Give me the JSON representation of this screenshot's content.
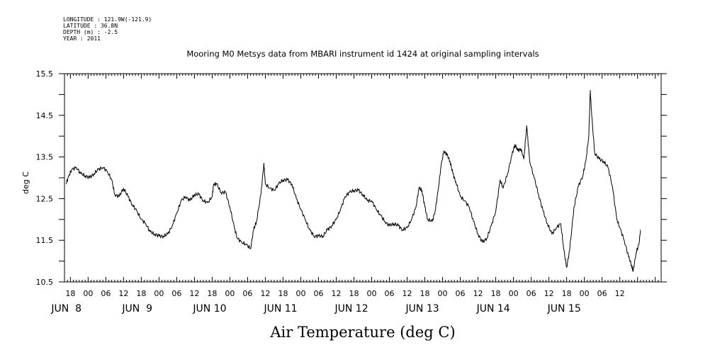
{
  "header": {
    "longitude": "LONGITUDE : 121.9W(-121.9)",
    "latitude": "LATITUDE : 36.8N",
    "depth": "DEPTH (m) : -2.5",
    "year": "YEAR : 2011"
  },
  "chart_data": {
    "type": "line",
    "title": "Mooring M0 Metsys data from MBARI instrument id 1424 at original sampling intervals",
    "xlabel": "Air Temperature (deg C)",
    "ylabel": "deg C",
    "ylim": [
      10.5,
      15.5
    ],
    "yticks": [
      "10.5",
      "11.5",
      "12.5",
      "13.5",
      "14.5",
      "15.5"
    ],
    "xlim_hours": [
      -8,
      194
    ],
    "x_units": "hours since 2011-06-08 00:00",
    "xticks_hours": [
      "18",
      "00",
      "06",
      "12",
      "18",
      "00",
      "06",
      "12",
      "18",
      "00",
      "06",
      "12",
      "18",
      "00",
      "06",
      "12",
      "18",
      "00",
      "06",
      "12",
      "18",
      "00",
      "06",
      "12",
      "18",
      "00",
      "06",
      "12",
      "18",
      "00",
      "06",
      "12"
    ],
    "day_labels": [
      "JUN  8",
      "JUN  9",
      "JUN 10",
      "JUN 11",
      "JUN 12",
      "JUN 13",
      "JUN 14",
      "JUN 15"
    ],
    "grid": false,
    "series": [
      {
        "name": "",
        "color": "#000000",
        "points": [
          [
            -7.5,
            12.85
          ],
          [
            -6.5,
            13.05
          ],
          [
            -5.5,
            13.2
          ],
          [
            -4,
            13.25
          ],
          [
            -2.5,
            13.1
          ],
          [
            -1,
            13.05
          ],
          [
            0.5,
            13.0
          ],
          [
            2,
            13.1
          ],
          [
            3.5,
            13.2
          ],
          [
            5,
            13.25
          ],
          [
            6.5,
            13.15
          ],
          [
            8,
            12.95
          ],
          [
            9,
            12.6
          ],
          [
            10.5,
            12.55
          ],
          [
            12,
            12.75
          ],
          [
            13.5,
            12.55
          ],
          [
            15,
            12.35
          ],
          [
            16.5,
            12.2
          ],
          [
            18,
            12.0
          ],
          [
            19.5,
            11.9
          ],
          [
            21,
            11.7
          ],
          [
            22.5,
            11.65
          ],
          [
            24,
            11.6
          ],
          [
            25.5,
            11.6
          ],
          [
            27,
            11.65
          ],
          [
            28.5,
            11.85
          ],
          [
            30,
            12.15
          ],
          [
            31.5,
            12.45
          ],
          [
            33,
            12.55
          ],
          [
            34.5,
            12.45
          ],
          [
            36,
            12.6
          ],
          [
            37.5,
            12.6
          ],
          [
            39,
            12.45
          ],
          [
            40.5,
            12.4
          ],
          [
            42,
            12.55
          ],
          [
            42.5,
            12.85
          ],
          [
            43.5,
            12.85
          ],
          [
            45,
            12.65
          ],
          [
            46.5,
            12.65
          ],
          [
            48,
            12.3
          ],
          [
            49.5,
            11.8
          ],
          [
            50.5,
            11.55
          ],
          [
            52,
            11.45
          ],
          [
            53.5,
            11.4
          ],
          [
            55,
            11.3
          ],
          [
            56,
            11.75
          ],
          [
            57,
            11.95
          ],
          [
            58.5,
            12.6
          ],
          [
            59.5,
            13.35
          ],
          [
            60,
            12.85
          ],
          [
            61.5,
            12.75
          ],
          [
            63,
            12.7
          ],
          [
            64.5,
            12.85
          ],
          [
            66,
            12.95
          ],
          [
            67.5,
            12.95
          ],
          [
            69,
            12.85
          ],
          [
            70.5,
            12.5
          ],
          [
            72,
            12.25
          ],
          [
            73.5,
            12.0
          ],
          [
            75,
            11.75
          ],
          [
            76.5,
            11.6
          ],
          [
            78,
            11.6
          ],
          [
            79.5,
            11.6
          ],
          [
            81,
            11.75
          ],
          [
            82.5,
            11.85
          ],
          [
            84,
            12.0
          ],
          [
            85.5,
            12.25
          ],
          [
            87,
            12.55
          ],
          [
            88.5,
            12.65
          ],
          [
            90,
            12.7
          ],
          [
            91.5,
            12.7
          ],
          [
            93,
            12.6
          ],
          [
            94.5,
            12.45
          ],
          [
            96,
            12.45
          ],
          [
            97.5,
            12.25
          ],
          [
            99,
            12.1
          ],
          [
            100.5,
            11.95
          ],
          [
            102,
            11.85
          ],
          [
            103.5,
            11.9
          ],
          [
            105,
            11.85
          ],
          [
            106.5,
            11.75
          ],
          [
            108,
            11.8
          ],
          [
            109.5,
            12.0
          ],
          [
            111,
            12.3
          ],
          [
            112,
            12.75
          ],
          [
            113,
            12.7
          ],
          [
            114,
            12.3
          ],
          [
            115,
            12.0
          ],
          [
            116.5,
            11.95
          ],
          [
            117.5,
            12.2
          ],
          [
            118.5,
            12.7
          ],
          [
            119.5,
            13.3
          ],
          [
            120.5,
            13.65
          ],
          [
            121.5,
            13.55
          ],
          [
            122.5,
            13.4
          ],
          [
            123.5,
            13.1
          ],
          [
            124.5,
            12.9
          ],
          [
            126,
            12.55
          ],
          [
            127.5,
            12.45
          ],
          [
            129,
            12.3
          ],
          [
            130.5,
            11.95
          ],
          [
            132,
            11.65
          ],
          [
            133.5,
            11.45
          ],
          [
            135,
            11.55
          ],
          [
            136.5,
            11.85
          ],
          [
            138,
            12.2
          ],
          [
            139.5,
            12.95
          ],
          [
            140.5,
            12.75
          ],
          [
            142,
            13.1
          ],
          [
            143.5,
            13.55
          ],
          [
            144.5,
            13.8
          ],
          [
            145.5,
            13.65
          ],
          [
            146.5,
            13.7
          ],
          [
            147.5,
            13.45
          ],
          [
            148.5,
            14.25
          ],
          [
            149.5,
            13.4
          ],
          [
            151,
            13.0
          ],
          [
            152.5,
            12.6
          ],
          [
            154,
            12.2
          ],
          [
            155.5,
            11.9
          ],
          [
            157,
            11.65
          ],
          [
            158.5,
            11.8
          ],
          [
            160,
            11.9
          ],
          [
            161,
            11.3
          ],
          [
            162,
            10.85
          ],
          [
            163,
            11.25
          ],
          [
            164.5,
            12.3
          ],
          [
            166,
            12.8
          ],
          [
            167.5,
            13.05
          ],
          [
            168.5,
            13.4
          ],
          [
            169.5,
            14.0
          ],
          [
            170,
            15.1
          ],
          [
            170.5,
            14.5
          ],
          [
            171.5,
            13.6
          ],
          [
            173,
            13.45
          ],
          [
            174.5,
            13.4
          ],
          [
            176,
            13.25
          ],
          [
            177.5,
            12.8
          ],
          [
            179,
            12.0
          ],
          [
            180,
            11.8
          ],
          [
            181.5,
            11.5
          ],
          [
            183,
            11.1
          ],
          [
            184,
            10.9
          ],
          [
            184.5,
            10.75
          ],
          [
            185.5,
            11.2
          ],
          [
            186.5,
            11.4
          ],
          [
            187,
            11.75
          ]
        ]
      }
    ]
  }
}
